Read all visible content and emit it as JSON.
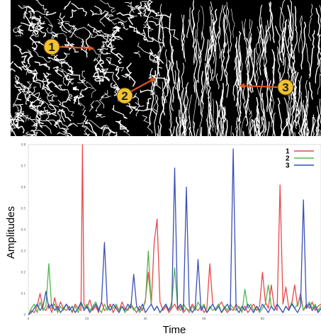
{
  "image": {
    "description_icon": "edge-detection-texture-image",
    "background_color": "#000000",
    "edge_color": "#ffffff",
    "arrow_color": "#e0531a",
    "marker_fill": "#f2c233",
    "markers": [
      {
        "label": "1"
      },
      {
        "label": "2"
      },
      {
        "label": "3"
      }
    ]
  },
  "chart_data": {
    "type": "line",
    "xlabel": "Time",
    "ylabel": "Amplitudes",
    "xlim": [
      0,
      100
    ],
    "ylim": [
      0,
      0.8
    ],
    "x_ticks": [
      "0",
      "20",
      "40",
      "60",
      "80"
    ],
    "y_ticks": [
      "0",
      "0.1",
      "0.2",
      "0.3",
      "0.4",
      "0.5",
      "0.6",
      "0.7",
      "0.8"
    ],
    "legend_position": "top-right",
    "grid": false,
    "series": [
      {
        "name": "1",
        "color": "#e8474b",
        "points": [
          [
            0,
            0
          ],
          [
            1,
            0.02
          ],
          [
            2,
            0.01
          ],
          [
            3,
            0.04
          ],
          [
            4,
            0.1
          ],
          [
            5,
            0.03
          ],
          [
            6,
            0.02
          ],
          [
            7,
            0.05
          ],
          [
            8,
            0.01
          ],
          [
            9,
            0.08
          ],
          [
            10,
            0.02
          ],
          [
            11,
            0.06
          ],
          [
            12,
            0.03
          ],
          [
            13,
            0.02
          ],
          [
            14,
            0.04
          ],
          [
            15,
            0.01
          ],
          [
            16,
            0.05
          ],
          [
            17,
            0.03
          ],
          [
            18,
            0.02
          ],
          [
            18.5,
            0.8
          ],
          [
            19,
            0.05
          ],
          [
            20,
            0.03
          ],
          [
            21,
            0.07
          ],
          [
            22,
            0.02
          ],
          [
            23,
            0.04
          ],
          [
            24,
            0.01
          ],
          [
            25,
            0.06
          ],
          [
            26,
            0.02
          ],
          [
            27,
            0.03
          ],
          [
            28,
            0.05
          ],
          [
            29,
            0.01
          ],
          [
            30,
            0.04
          ],
          [
            31,
            0.02
          ],
          [
            32,
            0.06
          ],
          [
            33,
            0.03
          ],
          [
            34,
            0.02
          ],
          [
            35,
            0.05
          ],
          [
            36,
            0.03
          ],
          [
            37,
            0.01
          ],
          [
            38,
            0.04
          ],
          [
            39,
            0.02
          ],
          [
            40,
            0.07
          ],
          [
            41,
            0.2
          ],
          [
            42,
            0.05
          ],
          [
            43,
            0.34
          ],
          [
            44,
            0.45
          ],
          [
            45,
            0.06
          ],
          [
            46,
            0.02
          ],
          [
            47,
            0.04
          ],
          [
            48,
            0.01
          ],
          [
            49,
            0.03
          ],
          [
            50,
            0.05
          ],
          [
            51,
            0.02
          ],
          [
            52,
            0.04
          ],
          [
            53,
            0.01
          ],
          [
            54,
            0.03
          ],
          [
            55,
            0.02
          ],
          [
            56,
            0.05
          ],
          [
            57,
            0.03
          ],
          [
            58,
            0.02
          ],
          [
            59,
            0.04
          ],
          [
            60,
            0.01
          ],
          [
            61,
            0.03
          ],
          [
            62,
            0.24
          ],
          [
            63,
            0.05
          ],
          [
            64,
            0.02
          ],
          [
            65,
            0.04
          ],
          [
            66,
            0.06
          ],
          [
            67,
            0.03
          ],
          [
            68,
            0.01
          ],
          [
            69,
            0.03
          ],
          [
            70,
            0.02
          ],
          [
            71,
            0.05
          ],
          [
            72,
            0.03
          ],
          [
            73,
            0.02
          ],
          [
            74,
            0.04
          ],
          [
            75,
            0.01
          ],
          [
            76,
            0.03
          ],
          [
            77,
            0.05
          ],
          [
            78,
            0.02
          ],
          [
            79,
            0.04
          ],
          [
            80,
            0.2
          ],
          [
            81,
            0.06
          ],
          [
            82,
            0.03
          ],
          [
            83,
            0.14
          ],
          [
            84,
            0.04
          ],
          [
            85,
            0.02
          ],
          [
            86,
            0.61
          ],
          [
            87,
            0.05
          ],
          [
            88,
            0.13
          ],
          [
            89,
            0.03
          ],
          [
            90,
            0.05
          ],
          [
            91,
            0.14
          ],
          [
            92,
            0.04
          ],
          [
            93,
            0.1
          ],
          [
            94,
            0.02
          ],
          [
            95,
            0.05
          ],
          [
            96,
            0.03
          ],
          [
            97,
            0.06
          ],
          [
            98,
            0.02
          ],
          [
            99,
            0.04
          ],
          [
            100,
            0.05
          ]
        ]
      },
      {
        "name": "2",
        "color": "#4fb84c",
        "points": [
          [
            0,
            0
          ],
          [
            1,
            0.03
          ],
          [
            2,
            0.05
          ],
          [
            3,
            0.01
          ],
          [
            4,
            0.06
          ],
          [
            5,
            0.02
          ],
          [
            6,
            0.04
          ],
          [
            7,
            0.24
          ],
          [
            8,
            0.03
          ],
          [
            9,
            0.05
          ],
          [
            10,
            0.01
          ],
          [
            11,
            0.04
          ],
          [
            12,
            0.02
          ],
          [
            13,
            0.05
          ],
          [
            14,
            0.03
          ],
          [
            15,
            0.02
          ],
          [
            16,
            0.04
          ],
          [
            17,
            0.01
          ],
          [
            18,
            0.06
          ],
          [
            19,
            0.03
          ],
          [
            20,
            0.05
          ],
          [
            21,
            0.02
          ],
          [
            22,
            0.04
          ],
          [
            23,
            0.06
          ],
          [
            24,
            0.03
          ],
          [
            25,
            0.01
          ],
          [
            26,
            0.05
          ],
          [
            27,
            0.02
          ],
          [
            28,
            0.04
          ],
          [
            29,
            0.03
          ],
          [
            30,
            0.05
          ],
          [
            31,
            0.02
          ],
          [
            32,
            0.04
          ],
          [
            33,
            0.01
          ],
          [
            34,
            0.03
          ],
          [
            35,
            0.05
          ],
          [
            36,
            0.02
          ],
          [
            37,
            0.04
          ],
          [
            38,
            0.01
          ],
          [
            39,
            0.03
          ],
          [
            40,
            0.06
          ],
          [
            41,
            0.3
          ],
          [
            42,
            0.05
          ],
          [
            43,
            0.02
          ],
          [
            44,
            0.04
          ],
          [
            45,
            0.01
          ],
          [
            46,
            0.03
          ],
          [
            47,
            0.05
          ],
          [
            48,
            0.02
          ],
          [
            49,
            0.06
          ],
          [
            50,
            0.22
          ],
          [
            51,
            0.04
          ],
          [
            52,
            0.02
          ],
          [
            53,
            0.05
          ],
          [
            54,
            0.03
          ],
          [
            55,
            0.01
          ],
          [
            56,
            0.04
          ],
          [
            57,
            0.02
          ],
          [
            58,
            0.06
          ],
          [
            59,
            0.03
          ],
          [
            60,
            0.05
          ],
          [
            61,
            0.01
          ],
          [
            62,
            0.04
          ],
          [
            63,
            0.02
          ],
          [
            64,
            0.03
          ],
          [
            65,
            0.05
          ],
          [
            66,
            0.01
          ],
          [
            67,
            0.04
          ],
          [
            68,
            0.02
          ],
          [
            69,
            0.05
          ],
          [
            70,
            0.03
          ],
          [
            71,
            0.02
          ],
          [
            72,
            0.04
          ],
          [
            73,
            0.01
          ],
          [
            74,
            0.12
          ],
          [
            75,
            0.03
          ],
          [
            76,
            0.05
          ],
          [
            77,
            0.02
          ],
          [
            78,
            0.04
          ],
          [
            79,
            0.01
          ],
          [
            80,
            0.03
          ],
          [
            81,
            0.05
          ],
          [
            82,
            0.14
          ],
          [
            83,
            0.04
          ],
          [
            84,
            0.02
          ],
          [
            85,
            0.05
          ],
          [
            86,
            0.03
          ],
          [
            87,
            0.01
          ],
          [
            88,
            0.04
          ],
          [
            89,
            0.02
          ],
          [
            90,
            0.06
          ],
          [
            91,
            0.03
          ],
          [
            92,
            0.05
          ],
          [
            93,
            0.08
          ],
          [
            94,
            0.02
          ],
          [
            95,
            0.04
          ],
          [
            96,
            0.06
          ],
          [
            97,
            0.03
          ],
          [
            98,
            0.05
          ],
          [
            99,
            0.02
          ],
          [
            100,
            0.04
          ]
        ]
      },
      {
        "name": "3",
        "color": "#3a4fb5",
        "points": [
          [
            0,
            0
          ],
          [
            1,
            0.01
          ],
          [
            2,
            0.03
          ],
          [
            3,
            0.05
          ],
          [
            4,
            0.02
          ],
          [
            5,
            0.04
          ],
          [
            6,
            0.11
          ],
          [
            7,
            0.03
          ],
          [
            8,
            0.05
          ],
          [
            9,
            0.02
          ],
          [
            10,
            0.04
          ],
          [
            11,
            0.01
          ],
          [
            12,
            0.03
          ],
          [
            13,
            0.05
          ],
          [
            14,
            0.02
          ],
          [
            15,
            0.04
          ],
          [
            16,
            0.01
          ],
          [
            17,
            0.03
          ],
          [
            18,
            0.06
          ],
          [
            19,
            0.02
          ],
          [
            20,
            0.04
          ],
          [
            21,
            0.01
          ],
          [
            22,
            0.03
          ],
          [
            23,
            0.05
          ],
          [
            24,
            0.02
          ],
          [
            25,
            0.06
          ],
          [
            26,
            0.34
          ],
          [
            27,
            0.04
          ],
          [
            28,
            0.02
          ],
          [
            29,
            0.05
          ],
          [
            30,
            0.03
          ],
          [
            31,
            0.01
          ],
          [
            32,
            0.04
          ],
          [
            33,
            0.02
          ],
          [
            34,
            0.05
          ],
          [
            35,
            0.03
          ],
          [
            36,
            0.19
          ],
          [
            37,
            0.04
          ],
          [
            38,
            0.02
          ],
          [
            39,
            0.05
          ],
          [
            40,
            0.01
          ],
          [
            41,
            0.03
          ],
          [
            42,
            0.05
          ],
          [
            43,
            0.02
          ],
          [
            44,
            0.04
          ],
          [
            45,
            0.01
          ],
          [
            46,
            0.03
          ],
          [
            47,
            0.05
          ],
          [
            48,
            0.02
          ],
          [
            49,
            0.04
          ],
          [
            50,
            0.69
          ],
          [
            51,
            0.03
          ],
          [
            52,
            0.05
          ],
          [
            53,
            0.02
          ],
          [
            54,
            0.6
          ],
          [
            55,
            0.04
          ],
          [
            56,
            0.01
          ],
          [
            57,
            0.03
          ],
          [
            58,
            0.26
          ],
          [
            59,
            0.02
          ],
          [
            60,
            0.04
          ],
          [
            61,
            0.01
          ],
          [
            62,
            0.03
          ],
          [
            63,
            0.05
          ],
          [
            64,
            0.02
          ],
          [
            65,
            0.04
          ],
          [
            66,
            0.01
          ],
          [
            67,
            0.03
          ],
          [
            68,
            0.05
          ],
          [
            69,
            0.02
          ],
          [
            70,
            0.78
          ],
          [
            71,
            0.03
          ],
          [
            72,
            0.01
          ],
          [
            73,
            0.04
          ],
          [
            74,
            0.02
          ],
          [
            75,
            0.05
          ],
          [
            76,
            0.03
          ],
          [
            77,
            0.01
          ],
          [
            78,
            0.04
          ],
          [
            79,
            0.02
          ],
          [
            80,
            0.05
          ],
          [
            81,
            0.03
          ],
          [
            82,
            0.01
          ],
          [
            83,
            0.04
          ],
          [
            84,
            0.02
          ],
          [
            85,
            0.05
          ],
          [
            86,
            0.03
          ],
          [
            87,
            0.01
          ],
          [
            88,
            0.04
          ],
          [
            89,
            0.02
          ],
          [
            90,
            0.05
          ],
          [
            91,
            0.03
          ],
          [
            92,
            0.01
          ],
          [
            93,
            0.04
          ],
          [
            94,
            0.54
          ],
          [
            95,
            0.03
          ],
          [
            96,
            0.05
          ],
          [
            97,
            0.02
          ],
          [
            98,
            0.04
          ],
          [
            99,
            0.01
          ],
          [
            100,
            0.03
          ]
        ]
      }
    ]
  }
}
